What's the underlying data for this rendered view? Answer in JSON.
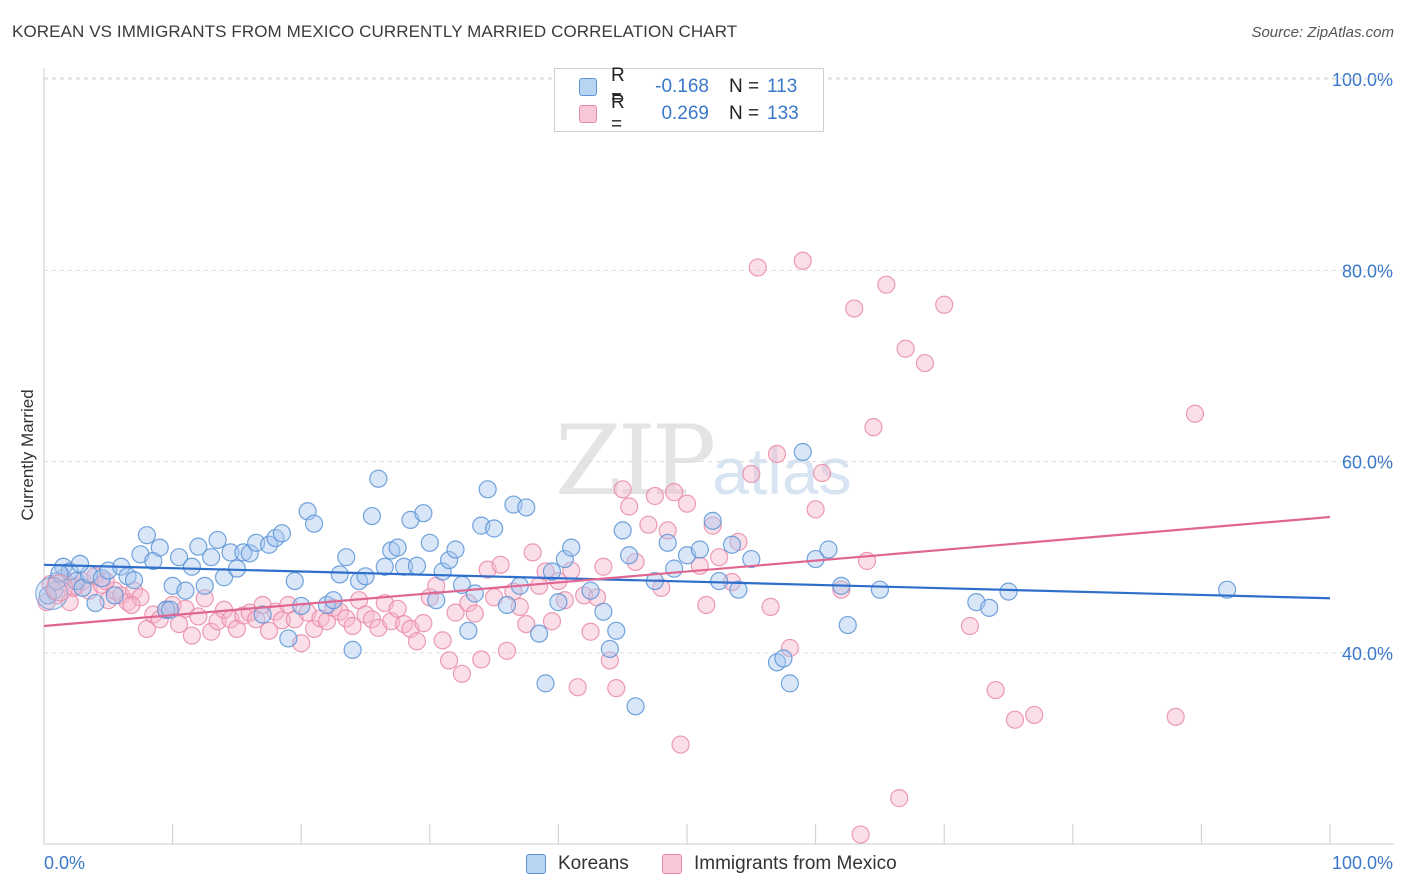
{
  "title": "KOREAN VS IMMIGRANTS FROM MEXICO CURRENTLY MARRIED CORRELATION CHART",
  "source": "Source: ZipAtlas.com",
  "watermark": {
    "main": "ZIP",
    "sub": "atlas"
  },
  "legend_top": {
    "rows": [
      {
        "r_label": "R =",
        "r_value": "-0.168",
        "n_label": "N =",
        "n_value": "113"
      },
      {
        "r_label": "R =",
        "r_value": "0.269",
        "n_label": "N =",
        "n_value": "133"
      }
    ]
  },
  "colors": {
    "blue_fill": "#a9c8ef",
    "blue_stroke": "#5b93d6",
    "blue_line": "#2f6fcb",
    "pink_fill": "#f6b9cb",
    "pink_stroke": "#e98aa7",
    "pink_line": "#e06692",
    "grid": "#dddddd",
    "tick_label": "#3a78c9"
  },
  "chart_data": {
    "type": "scatter",
    "title": "KOREAN VS IMMIGRANTS FROM MEXICO CURRENTLY MARRIED CORRELATION CHART",
    "xlabel": "",
    "ylabel": "Currently Married",
    "xlim": [
      0,
      100
    ],
    "ylim": [
      20,
      102
    ],
    "x_tick_labels": [
      "0.0%",
      "100.0%"
    ],
    "y_ticks": [
      40,
      60,
      80,
      100
    ],
    "y_tick_labels": [
      "40.0%",
      "60.0%",
      "80.0%",
      "100.0%"
    ],
    "grid": true,
    "legend_position": "top-center",
    "series": [
      {
        "name": "Koreans",
        "r": -0.168,
        "n": 113,
        "trend": {
          "x": [
            0,
            100
          ],
          "y": [
            49.2,
            45.7
          ]
        },
        "points": [
          [
            0.8,
            46.5
          ],
          [
            1.0,
            47.5
          ],
          [
            1.5,
            49.0
          ],
          [
            2.0,
            48.5
          ],
          [
            2.5,
            47.5
          ],
          [
            3.0,
            46.8
          ],
          [
            3.5,
            48.2
          ],
          [
            4.0,
            45.2
          ],
          [
            4.5,
            47.8
          ],
          [
            5.0,
            48.6
          ],
          [
            6.0,
            49.0
          ],
          [
            6.5,
            48.0
          ],
          [
            7.0,
            47.6
          ],
          [
            7.5,
            50.3
          ],
          [
            8.0,
            52.3
          ],
          [
            8.5,
            49.6
          ],
          [
            9.0,
            51.0
          ],
          [
            9.5,
            44.5
          ],
          [
            10.0,
            47.0
          ],
          [
            10.5,
            50.0
          ],
          [
            11.0,
            46.5
          ],
          [
            11.5,
            49.0
          ],
          [
            12.0,
            51.1
          ],
          [
            12.5,
            47.0
          ],
          [
            13.0,
            50.0
          ],
          [
            13.5,
            51.8
          ],
          [
            14.0,
            47.9
          ],
          [
            14.5,
            50.5
          ],
          [
            15.0,
            48.8
          ],
          [
            15.5,
            50.5
          ],
          [
            16.0,
            50.4
          ],
          [
            16.5,
            51.5
          ],
          [
            17.0,
            44.0
          ],
          [
            17.5,
            51.3
          ],
          [
            18.0,
            52.0
          ],
          [
            18.5,
            52.5
          ],
          [
            19.0,
            41.5
          ],
          [
            19.5,
            47.5
          ],
          [
            20.0,
            44.9
          ],
          [
            20.5,
            54.8
          ],
          [
            21.0,
            53.5
          ],
          [
            22.0,
            45.0
          ],
          [
            22.5,
            45.5
          ],
          [
            23.0,
            48.2
          ],
          [
            23.5,
            50.0
          ],
          [
            24.0,
            40.3
          ],
          [
            24.5,
            47.5
          ],
          [
            25.0,
            48.0
          ],
          [
            25.5,
            54.3
          ],
          [
            26.0,
            58.2
          ],
          [
            26.5,
            49.0
          ],
          [
            27.0,
            50.7
          ],
          [
            27.5,
            51.0
          ],
          [
            28.0,
            49.0
          ],
          [
            28.5,
            53.9
          ],
          [
            29.0,
            49.1
          ],
          [
            29.5,
            54.6
          ],
          [
            30.0,
            51.5
          ],
          [
            30.5,
            45.5
          ],
          [
            31.0,
            48.5
          ],
          [
            31.5,
            49.7
          ],
          [
            32.0,
            50.8
          ],
          [
            32.5,
            47.1
          ],
          [
            33.0,
            42.3
          ],
          [
            33.5,
            46.2
          ],
          [
            34.0,
            53.3
          ],
          [
            34.5,
            57.1
          ],
          [
            35.0,
            53.0
          ],
          [
            36.0,
            45.0
          ],
          [
            36.5,
            55.5
          ],
          [
            37.0,
            47.0
          ],
          [
            37.5,
            55.2
          ],
          [
            38.5,
            42.0
          ],
          [
            39.0,
            36.8
          ],
          [
            39.5,
            48.5
          ],
          [
            40.0,
            45.3
          ],
          [
            40.5,
            49.8
          ],
          [
            41.0,
            51.0
          ],
          [
            42.5,
            46.5
          ],
          [
            43.5,
            44.3
          ],
          [
            44.0,
            40.4
          ],
          [
            44.5,
            42.3
          ],
          [
            45.0,
            52.8
          ],
          [
            45.5,
            50.2
          ],
          [
            46.0,
            34.4
          ],
          [
            47.5,
            47.5
          ],
          [
            48.5,
            51.5
          ],
          [
            49.0,
            48.8
          ],
          [
            50.0,
            50.2
          ],
          [
            51.0,
            50.8
          ],
          [
            52.0,
            53.8
          ],
          [
            52.5,
            47.5
          ],
          [
            53.5,
            51.3
          ],
          [
            54.0,
            46.6
          ],
          [
            55.0,
            49.8
          ],
          [
            57.0,
            39.0
          ],
          [
            57.5,
            39.4
          ],
          [
            58.0,
            36.8
          ],
          [
            59.0,
            61.0
          ],
          [
            60.0,
            49.8
          ],
          [
            61.0,
            50.8
          ],
          [
            62.0,
            47.0
          ],
          [
            62.5,
            42.9
          ],
          [
            65.0,
            46.6
          ],
          [
            72.5,
            45.3
          ],
          [
            73.5,
            44.7
          ],
          [
            75.0,
            46.4
          ],
          [
            92.0,
            46.6
          ],
          [
            0.3,
            46.0
          ],
          [
            1.2,
            48.3
          ],
          [
            2.8,
            49.3
          ],
          [
            5.5,
            46.0
          ],
          [
            9.8,
            44.5
          ]
        ]
      },
      {
        "name": "Immigrants from Mexico",
        "r": 0.269,
        "n": 133,
        "trend": {
          "x": [
            0,
            100
          ],
          "y": [
            42.8,
            54.2
          ]
        },
        "points": [
          [
            0.5,
            47.2
          ],
          [
            1.0,
            46.0
          ],
          [
            1.5,
            47.8
          ],
          [
            2.0,
            45.3
          ],
          [
            2.5,
            47.0
          ],
          [
            3.0,
            47.5
          ],
          [
            3.5,
            46.5
          ],
          [
            4.0,
            48.0
          ],
          [
            4.5,
            47.1
          ],
          [
            5.0,
            45.5
          ],
          [
            5.5,
            46.5
          ],
          [
            6.0,
            46.0
          ],
          [
            6.5,
            45.3
          ],
          [
            7.0,
            46.5
          ],
          [
            7.5,
            45.8
          ],
          [
            8.0,
            42.5
          ],
          [
            8.5,
            44.0
          ],
          [
            9.0,
            43.5
          ],
          [
            9.5,
            44.5
          ],
          [
            10.0,
            45.0
          ],
          [
            10.5,
            43.0
          ],
          [
            11.0,
            44.6
          ],
          [
            11.5,
            41.8
          ],
          [
            12.0,
            43.8
          ],
          [
            12.5,
            45.7
          ],
          [
            13.0,
            42.2
          ],
          [
            13.5,
            43.3
          ],
          [
            14.0,
            44.5
          ],
          [
            14.5,
            43.5
          ],
          [
            15.0,
            42.5
          ],
          [
            15.5,
            43.9
          ],
          [
            16.0,
            44.2
          ],
          [
            16.5,
            43.5
          ],
          [
            17.0,
            45.0
          ],
          [
            17.5,
            42.3
          ],
          [
            18.0,
            44.3
          ],
          [
            18.5,
            43.4
          ],
          [
            19.0,
            45.0
          ],
          [
            19.5,
            43.5
          ],
          [
            20.0,
            41.0
          ],
          [
            20.5,
            44.2
          ],
          [
            21.0,
            42.5
          ],
          [
            21.5,
            43.6
          ],
          [
            22.0,
            43.3
          ],
          [
            22.5,
            44.7
          ],
          [
            23.0,
            44.3
          ],
          [
            23.5,
            43.6
          ],
          [
            24.0,
            42.8
          ],
          [
            24.5,
            45.5
          ],
          [
            25.0,
            44.0
          ],
          [
            25.5,
            43.5
          ],
          [
            26.0,
            42.6
          ],
          [
            26.5,
            45.2
          ],
          [
            27.0,
            43.3
          ],
          [
            27.5,
            44.6
          ],
          [
            28.0,
            43.0
          ],
          [
            28.5,
            42.5
          ],
          [
            29.0,
            41.2
          ],
          [
            29.5,
            43.1
          ],
          [
            30.0,
            45.8
          ],
          [
            30.5,
            47.0
          ],
          [
            31.0,
            41.3
          ],
          [
            31.5,
            39.2
          ],
          [
            32.0,
            44.2
          ],
          [
            32.5,
            37.8
          ],
          [
            33.0,
            45.2
          ],
          [
            33.5,
            44.1
          ],
          [
            34.0,
            39.3
          ],
          [
            34.5,
            48.7
          ],
          [
            35.0,
            45.8
          ],
          [
            35.5,
            49.2
          ],
          [
            36.0,
            40.2
          ],
          [
            36.5,
            46.4
          ],
          [
            37.0,
            44.8
          ],
          [
            37.5,
            43.0
          ],
          [
            38.0,
            50.5
          ],
          [
            38.5,
            47.0
          ],
          [
            39.0,
            48.5
          ],
          [
            39.5,
            43.3
          ],
          [
            40.0,
            47.5
          ],
          [
            40.5,
            45.5
          ],
          [
            41.0,
            48.6
          ],
          [
            41.5,
            36.4
          ],
          [
            42.0,
            46.0
          ],
          [
            42.5,
            42.2
          ],
          [
            43.0,
            45.8
          ],
          [
            43.5,
            49.0
          ],
          [
            44.0,
            39.2
          ],
          [
            44.5,
            36.3
          ],
          [
            45.0,
            57.1
          ],
          [
            45.5,
            55.3
          ],
          [
            46.0,
            49.5
          ],
          [
            47.0,
            53.4
          ],
          [
            47.5,
            56.4
          ],
          [
            48.0,
            46.8
          ],
          [
            48.5,
            52.8
          ],
          [
            49.0,
            56.8
          ],
          [
            49.5,
            30.4
          ],
          [
            50.0,
            55.6
          ],
          [
            51.0,
            49.1
          ],
          [
            51.5,
            45.0
          ],
          [
            52.0,
            53.3
          ],
          [
            52.5,
            50.0
          ],
          [
            53.5,
            47.4
          ],
          [
            54.0,
            51.6
          ],
          [
            55.0,
            58.7
          ],
          [
            55.5,
            80.3
          ],
          [
            57.0,
            60.8
          ],
          [
            59.0,
            81.0
          ],
          [
            60.5,
            58.8
          ],
          [
            62.0,
            46.6
          ],
          [
            63.0,
            76.0
          ],
          [
            64.0,
            49.6
          ],
          [
            64.5,
            63.6
          ],
          [
            65.5,
            78.5
          ],
          [
            67.0,
            71.8
          ],
          [
            68.5,
            70.3
          ],
          [
            70.0,
            76.4
          ],
          [
            72.0,
            42.8
          ],
          [
            74.0,
            36.1
          ],
          [
            75.5,
            33.0
          ],
          [
            77.0,
            33.5
          ],
          [
            88.0,
            33.3
          ],
          [
            89.5,
            65.0
          ],
          [
            66.5,
            24.8
          ],
          [
            63.5,
            21.0
          ],
          [
            0.2,
            45.3
          ],
          [
            2.3,
            46.8
          ],
          [
            4.8,
            47.5
          ],
          [
            6.8,
            45.0
          ],
          [
            56.5,
            44.8
          ],
          [
            58.0,
            40.5
          ],
          [
            60.0,
            55.0
          ]
        ]
      }
    ]
  }
}
